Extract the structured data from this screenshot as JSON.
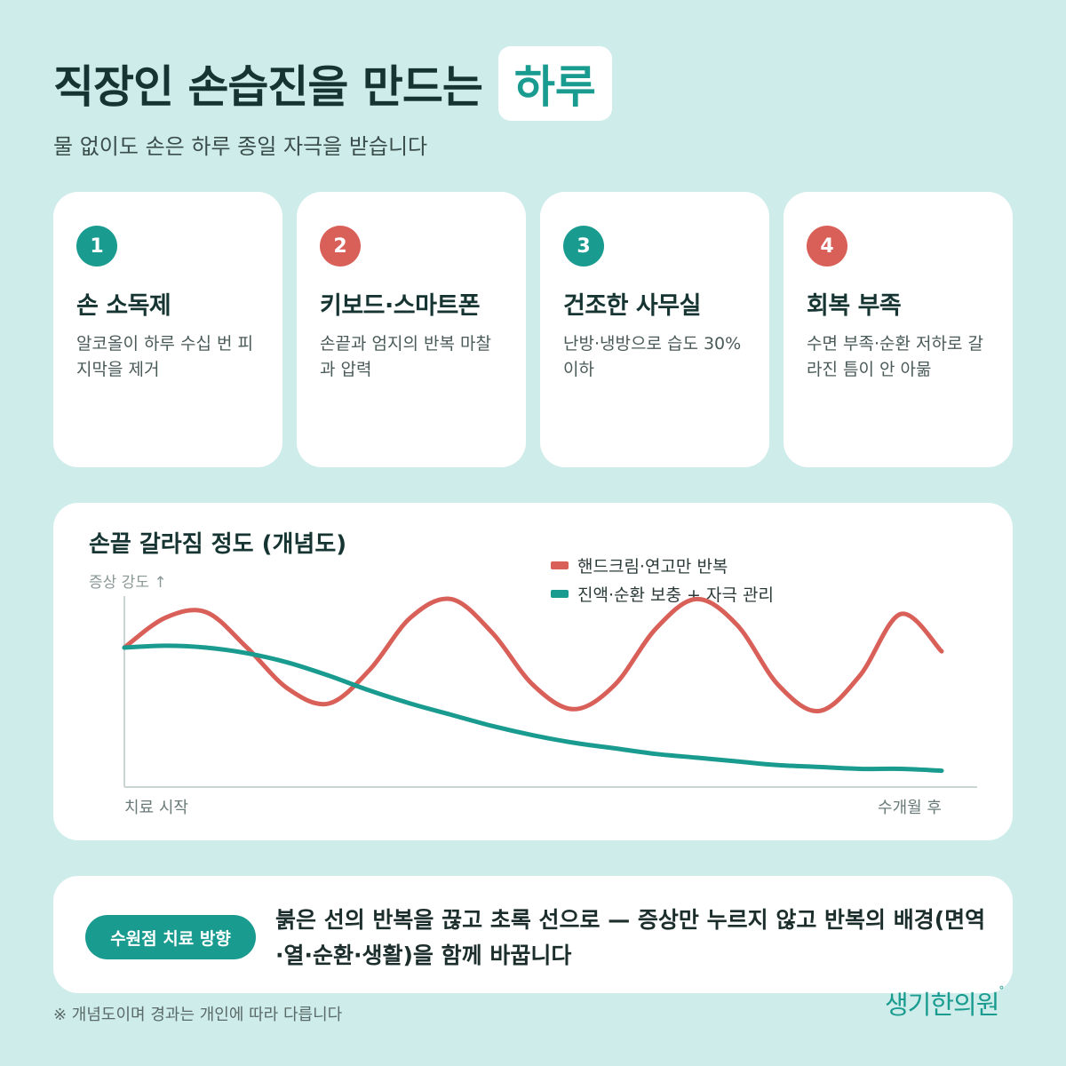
{
  "header": {
    "title_main": "직장인 손습진을 만드는",
    "title_highlight": "하루",
    "subtitle": "물 없이도 손은 하루 종일 자극을 받습니다"
  },
  "cards": [
    {
      "number": "1",
      "title": "손 소독제",
      "desc": "알코올이 하루 수십 번 피지막을 제거",
      "badge_color": "#1a9b8f"
    },
    {
      "number": "2",
      "title": "키보드·스마트폰",
      "desc": "손끝과 엄지의 반복 마찰과 압력",
      "badge_color": "#d96058"
    },
    {
      "number": "3",
      "title": "건조한 사무실",
      "desc": "난방·냉방으로 습도 30% 이하",
      "badge_color": "#1a9b8f"
    },
    {
      "number": "4",
      "title": "회복 부족",
      "desc": "수면 부족·순환 저하로 갈라진 틈이 안 아묾",
      "badge_color": "#d96058"
    }
  ],
  "chart": {
    "title": "손끝 갈라짐 정도 (개념도)",
    "y_label": "증상 강도 ↑",
    "x_start": "치료 시작",
    "x_end": "수개월 후",
    "legend": [
      {
        "label": "핸드크림·연고만 반복",
        "color": "#d96058"
      },
      {
        "label": "진액·순환 보충 + 자극 관리",
        "color": "#1a9b8f"
      }
    ]
  },
  "chart_data": {
    "type": "line",
    "title": "손끝 갈라짐 정도 (개념도)",
    "xlabel": "",
    "ylabel": "증상 강도 ↑",
    "x_tick_labels": [
      "치료 시작",
      "수개월 후"
    ],
    "x": [
      0,
      0.05,
      0.1,
      0.15,
      0.2,
      0.25,
      0.3,
      0.35,
      0.4,
      0.45,
      0.5,
      0.55,
      0.6,
      0.65,
      0.7,
      0.75,
      0.8,
      0.85,
      0.9,
      0.95,
      1.0
    ],
    "xlim": [
      0,
      1
    ],
    "ylim": [
      0,
      1
    ],
    "grid": false,
    "legend_position": "top-right",
    "series": [
      {
        "name": "핸드크림·연고만 반복",
        "color": "#d96058",
        "values": [
          0.7,
          0.86,
          0.89,
          0.7,
          0.48,
          0.4,
          0.58,
          0.86,
          0.96,
          0.78,
          0.5,
          0.37,
          0.5,
          0.8,
          0.96,
          0.82,
          0.5,
          0.36,
          0.55,
          0.88,
          0.68
        ]
      },
      {
        "name": "진액·순환 보충 + 자극 관리",
        "color": "#1a9b8f",
        "values": [
          0.7,
          0.71,
          0.7,
          0.67,
          0.62,
          0.55,
          0.47,
          0.4,
          0.34,
          0.28,
          0.23,
          0.19,
          0.16,
          0.13,
          0.11,
          0.09,
          0.07,
          0.06,
          0.05,
          0.05,
          0.04
        ]
      }
    ]
  },
  "bottom": {
    "pill_label": "수원점 치료 방향",
    "message": "붉은 선의 반복을 끊고 초록 선으로 — 증상만 누르지 않고 반복의 배경(면역·열·순환·생활)을 함께 바꿉니다"
  },
  "footnote": "※ 개념도이며 경과는 개인에 따라 다릅니다",
  "logo": {
    "text": "생기한의원",
    "mark": "°"
  }
}
